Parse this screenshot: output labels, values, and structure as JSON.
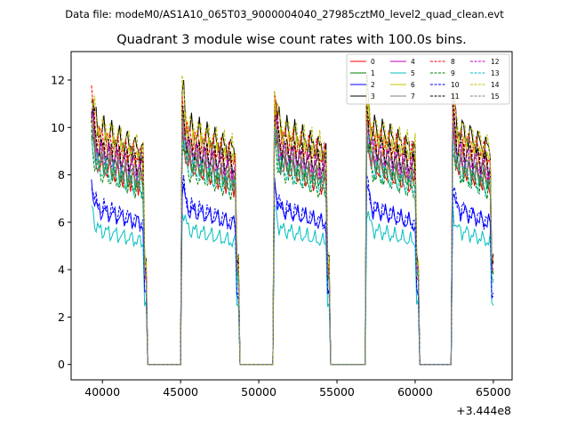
{
  "chart_data": {
    "type": "line",
    "suptitle": "Data file: modeM0/AS1A10_065T03_9000004040_27985cztM0_level2_quad_clean.evt",
    "title": "Quadrant 3 module wise count rates with 100.0s bins.",
    "xlabel": "",
    "ylabel": "",
    "offset_label": "+3.444e8",
    "xlim": [
      38000,
      66200
    ],
    "ylim": [
      -0.65,
      13.2
    ],
    "xticks": [
      40000,
      45000,
      50000,
      55000,
      60000,
      65000
    ],
    "xtick_labels": [
      "40000",
      "45000",
      "50000",
      "55000",
      "60000",
      "65000"
    ],
    "yticks": [
      0,
      2,
      4,
      6,
      8,
      10,
      12
    ],
    "ytick_labels": [
      "0",
      "2",
      "4",
      "6",
      "8",
      "10",
      "12"
    ],
    "segments": [
      [
        39300,
        42800
      ],
      [
        45100,
        48700
      ],
      [
        51000,
        54500
      ],
      [
        56900,
        60200
      ],
      [
        62400,
        65000
      ]
    ],
    "series": [
      {
        "name": "0",
        "color": "#ff0000",
        "dash": "solid",
        "level": 8.1
      },
      {
        "name": "1",
        "color": "#008000",
        "dash": "solid",
        "level": 8.3
      },
      {
        "name": "2",
        "color": "#0000ff",
        "dash": "solid",
        "level": 6.3
      },
      {
        "name": "3",
        "color": "#000000",
        "dash": "solid",
        "level": 9.6
      },
      {
        "name": "4",
        "color": "#bf00bf",
        "dash": "solid",
        "level": 8.8
      },
      {
        "name": "5",
        "color": "#00bfbf",
        "dash": "solid",
        "level": 5.5
      },
      {
        "name": "6",
        "color": "#bfbf00",
        "dash": "solid",
        "level": 9.0
      },
      {
        "name": "7",
        "color": "#808080",
        "dash": "solid",
        "level": 8.5
      },
      {
        "name": "8",
        "color": "#ff0000",
        "dash": "dashed",
        "level": 9.3
      },
      {
        "name": "9",
        "color": "#008000",
        "dash": "dashed",
        "level": 7.8
      },
      {
        "name": "10",
        "color": "#0000ff",
        "dash": "dashed",
        "level": 6.4
      },
      {
        "name": "11",
        "color": "#000000",
        "dash": "dashed",
        "level": 8.9
      },
      {
        "name": "12",
        "color": "#bf00bf",
        "dash": "dashed",
        "level": 8.6
      },
      {
        "name": "13",
        "color": "#00bfbf",
        "dash": "dashed",
        "level": 8.0
      },
      {
        "name": "14",
        "color": "#bfbf00",
        "dash": "dashed",
        "level": 9.7
      },
      {
        "name": "15",
        "color": "#808080",
        "dash": "dashed",
        "level": 8.2
      }
    ]
  }
}
